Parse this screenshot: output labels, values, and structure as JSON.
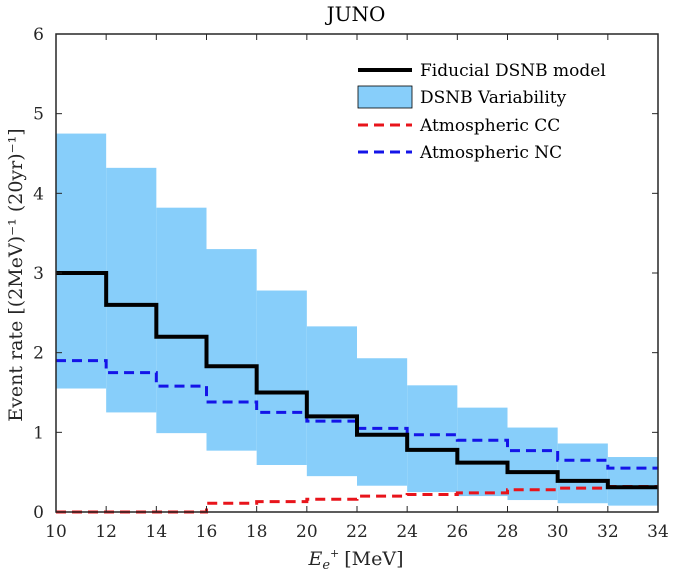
{
  "chart_data": {
    "type": "step",
    "title": "JUNO",
    "xlabel": "E",
    "xlabel_sub": "e",
    "xlabel_sup": "+",
    "xlabel_unit": "[MeV]",
    "ylabel": "Event rate [(2MeV)⁻¹ (20yr)⁻¹]",
    "xlim": [
      10,
      34
    ],
    "ylim": [
      0,
      6
    ],
    "xticks": [
      10,
      12,
      14,
      16,
      18,
      20,
      22,
      24,
      26,
      28,
      30,
      32,
      34
    ],
    "yticks": [
      0,
      1,
      2,
      3,
      4,
      5,
      6
    ],
    "bin_edges": [
      10,
      12,
      14,
      16,
      18,
      20,
      22,
      24,
      26,
      28,
      30,
      32,
      34
    ],
    "series": [
      {
        "name": "Fiducial DSNB model",
        "kind": "step-line",
        "color": "#000000",
        "values": [
          3.0,
          2.6,
          2.2,
          1.83,
          1.5,
          1.2,
          0.97,
          0.78,
          0.62,
          0.5,
          0.39,
          0.31
        ]
      },
      {
        "name": "DSNB Variability",
        "kind": "band",
        "color": "#87CEFA",
        "lower": [
          1.55,
          1.25,
          0.99,
          0.77,
          0.59,
          0.45,
          0.33,
          0.25,
          0.2,
          0.15,
          0.11,
          0.08
        ],
        "upper": [
          4.75,
          4.32,
          3.82,
          3.3,
          2.78,
          2.33,
          1.93,
          1.59,
          1.31,
          1.06,
          0.86,
          0.69
        ]
      },
      {
        "name": "Atmospheric CC",
        "kind": "dashed-step",
        "color": "#E8141B",
        "values": [
          0.0,
          0.0,
          0.0,
          0.11,
          0.13,
          0.16,
          0.2,
          0.22,
          0.24,
          0.28,
          0.3,
          0.32
        ]
      },
      {
        "name": "Atmospheric NC",
        "kind": "dashed-step",
        "color": "#1414E8",
        "values": [
          1.9,
          1.75,
          1.58,
          1.38,
          1.25,
          1.14,
          1.05,
          0.97,
          0.9,
          0.77,
          0.65,
          0.55
        ]
      }
    ],
    "legend_position": "top-right"
  }
}
